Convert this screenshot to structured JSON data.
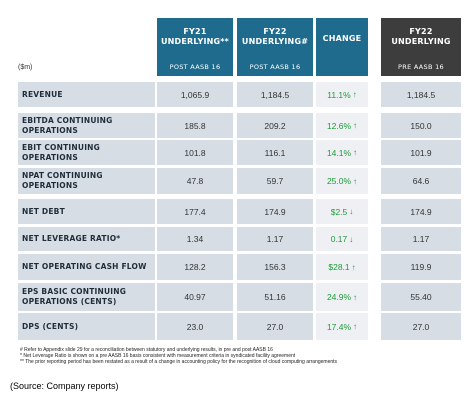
{
  "headers": {
    "fy21": {
      "title": "FY21\nUNDERLYING**",
      "sub": "POST AASB 16"
    },
    "fy22": {
      "title": "FY22\nUNDERLYING#",
      "sub": "POST AASB 16"
    },
    "change": {
      "title": "CHANGE"
    },
    "fy22_pre": {
      "title": "FY22\nUNDERLYING",
      "sub": "PRE AASB 16"
    },
    "unit": "($m)"
  },
  "rows": [
    {
      "label": "REVENUE",
      "fy21": "1,065.9",
      "fy22": "1,184.5",
      "change": "11.1%",
      "dir": "up",
      "pre": "1,184.5"
    },
    {
      "label": "EBITDA CONTINUING OPERATIONS",
      "fy21": "185.8",
      "fy22": "209.2",
      "change": "12.6%",
      "dir": "up",
      "pre": "150.0"
    },
    {
      "label": "EBIT CONTINUING OPERATIONS",
      "fy21": "101.8",
      "fy22": "116.1",
      "change": "14.1%",
      "dir": "up",
      "pre": "101.9"
    },
    {
      "label": "NPAT CONTINUING OPERATIONS",
      "fy21": "47.8",
      "fy22": "59.7",
      "change": "25.0%",
      "dir": "up",
      "pre": "64.6"
    },
    {
      "label": "NET DEBT",
      "fy21": "177.4",
      "fy22": "174.9",
      "change": "$2.5",
      "dir": "down",
      "pre": "174.9"
    },
    {
      "label": "NET LEVERAGE RATIO*",
      "fy21": "1.34",
      "fy22": "1.17",
      "change": "0.17",
      "dir": "down",
      "pre": "1.17"
    },
    {
      "label": "NET OPERATING CASH FLOW",
      "fy21": "128.2",
      "fy22": "156.3",
      "change": "$28.1",
      "dir": "up",
      "pre": "119.9"
    },
    {
      "label": "EPS BASIC CONTINUING\nOPERATIONS (CENTS)",
      "fy21": "40.97",
      "fy22": "51.16",
      "change": "24.9%",
      "dir": "up",
      "pre": "55.40"
    },
    {
      "label": "DPS (CENTS)",
      "fy21": "23.0",
      "fy22": "27.0",
      "change": "17.4%",
      "dir": "up",
      "pre": "27.0"
    }
  ],
  "arrows": {
    "up": "↑",
    "down": "↓"
  },
  "notes": [
    "# Refer to Appendix slide 29 for a reconciliation between statutory and underlying results, in pre and post AASB 16",
    "* Net Leverage Ratio is shown on a pre AASB 16 basis consistent with measurement criteria in syndicated facility agreement",
    "** The prior reporting period has been restated as a result of a change in accounting policy for the recognition of cloud computing arrangements"
  ],
  "source": "(Source: Company reports)"
}
